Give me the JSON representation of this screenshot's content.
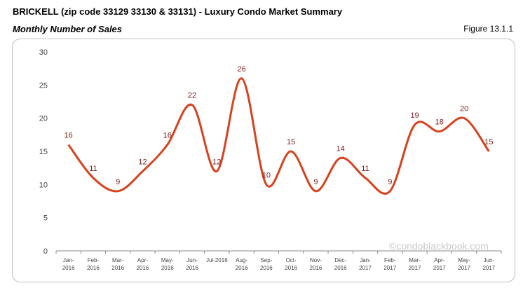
{
  "header": {
    "title": "BRICKELL (zip code 33129 33130 & 33131) - Luxury Condo Market Summary",
    "subtitle": "Monthly Number of Sales",
    "figure": "Figure 13.1.1"
  },
  "watermark": "©condoblackbook.com",
  "chart_data": {
    "type": "line",
    "title": "",
    "xlabel": "",
    "ylabel": "",
    "categories": [
      [
        "Jan-",
        "2016"
      ],
      [
        "Feb-",
        "2016"
      ],
      [
        "Mar-",
        "2016"
      ],
      [
        "Apr-",
        "2016"
      ],
      [
        "May-",
        "2016"
      ],
      [
        "Jun-",
        "2016"
      ],
      [
        "Jul-2016",
        ""
      ],
      [
        "Aug-",
        "2016"
      ],
      [
        "Sep-",
        "2016"
      ],
      [
        "Oct-",
        "2016"
      ],
      [
        "Nov-",
        "2016"
      ],
      [
        "Dec-",
        "2016"
      ],
      [
        "Jan-",
        "2017"
      ],
      [
        "Feb-",
        "2017"
      ],
      [
        "Mar-",
        "2017"
      ],
      [
        "Apr-",
        "2017"
      ],
      [
        "May-",
        "2017"
      ],
      [
        "Jun-",
        "2017"
      ]
    ],
    "values": [
      16,
      11,
      9,
      12,
      16,
      22,
      12,
      26,
      10,
      15,
      9,
      14,
      11,
      9,
      19,
      18,
      20,
      15
    ],
    "ylim": [
      0,
      30
    ],
    "yticks": [
      0,
      5,
      10,
      15,
      20,
      25,
      30
    ],
    "grid": false,
    "smooth": true,
    "line_color": "#d9411e",
    "label_color": "#7b1c1c"
  }
}
